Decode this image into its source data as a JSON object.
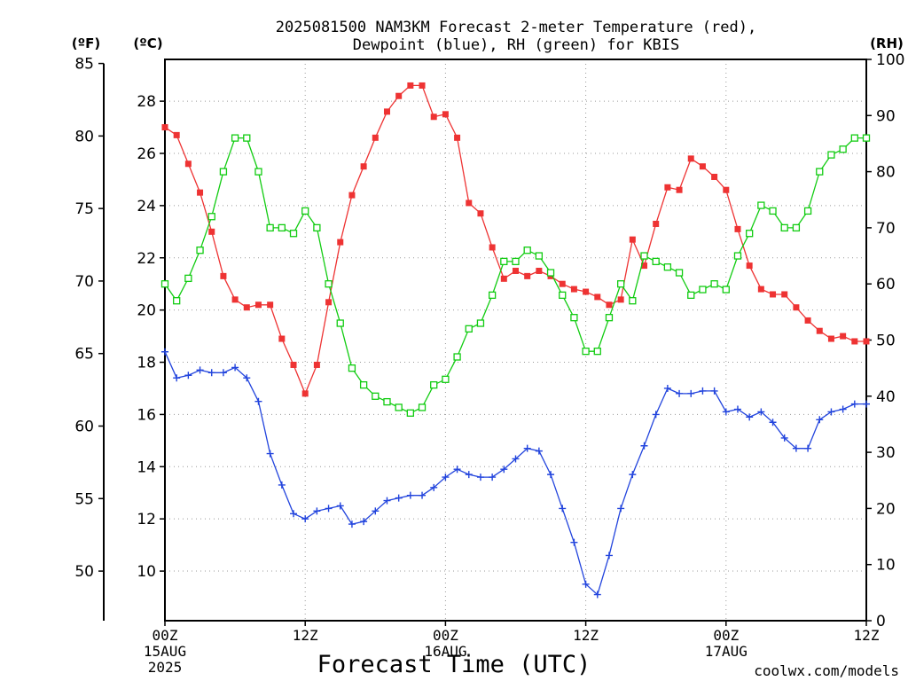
{
  "chart_data": {
    "type": "line",
    "title_line1": "2025081500 NAM3KM Forecast 2-meter Temperature (red),",
    "title_line2": "Dewpoint (blue), RH (green) for KBIS",
    "xlabel": "Forecast Time (UTC)",
    "credit": "coolwx.com/models",
    "unit_labels": {
      "fahrenheit": "(ºF)",
      "celsius": "(ºC)",
      "rh": "(RH)"
    },
    "x_range_hours": [
      0,
      60
    ],
    "x_ticks": [
      {
        "hour": 0,
        "label": "00Z",
        "sub1": "15AUG",
        "sub2": "2025"
      },
      {
        "hour": 12,
        "label": "12Z",
        "sub1": "",
        "sub2": ""
      },
      {
        "hour": 24,
        "label": "00Z",
        "sub1": "16AUG",
        "sub2": ""
      },
      {
        "hour": 36,
        "label": "12Z",
        "sub1": "",
        "sub2": ""
      },
      {
        "hour": 48,
        "label": "00Z",
        "sub1": "17AUG",
        "sub2": ""
      },
      {
        "hour": 60,
        "label": "12Z",
        "sub1": "",
        "sub2": ""
      }
    ],
    "y_celsius": {
      "range": [
        8.1,
        29.6
      ],
      "ticks": [
        10,
        12,
        14,
        16,
        18,
        20,
        22,
        24,
        26,
        28
      ]
    },
    "y_fahrenheit": {
      "ticks": [
        50,
        55,
        60,
        65,
        70,
        75,
        80,
        85
      ]
    },
    "y_rh": {
      "range": [
        0,
        100
      ],
      "ticks": [
        0,
        10,
        20,
        30,
        40,
        50,
        60,
        70,
        80,
        90,
        100
      ]
    },
    "grid": true,
    "colors": {
      "temperature": "#ee3333",
      "dewpoint": "#2244dd",
      "rh": "#11cc11",
      "credit": "#dd2222"
    },
    "series": [
      {
        "name": "Temperature (red)",
        "unit": "C",
        "x": [
          0,
          1,
          2,
          3,
          4,
          5,
          6,
          7,
          8,
          9,
          10,
          11,
          12,
          13,
          14,
          15,
          16,
          17,
          18,
          19,
          20,
          21,
          22,
          23,
          24,
          25,
          26,
          27,
          28,
          29,
          30,
          31,
          32,
          33,
          34,
          35,
          36,
          37,
          38,
          39,
          40,
          41,
          42,
          43,
          44,
          45,
          46,
          47,
          48,
          49,
          50,
          51,
          52,
          53,
          54,
          55,
          56,
          57,
          58,
          59,
          60
        ],
        "values": [
          27.0,
          26.7,
          25.6,
          24.5,
          23.0,
          21.3,
          20.4,
          20.1,
          20.2,
          20.2,
          18.9,
          17.9,
          16.8,
          17.9,
          20.3,
          22.6,
          24.4,
          25.5,
          26.6,
          27.6,
          28.2,
          28.6,
          28.6,
          27.4,
          27.5,
          26.6,
          24.1,
          23.7,
          22.4,
          21.2,
          21.5,
          21.3,
          21.5,
          21.3,
          21.0,
          20.8,
          20.7,
          20.5,
          20.2,
          20.4,
          22.7,
          21.7,
          23.3,
          24.7,
          24.6,
          25.8,
          25.5,
          25.1,
          24.6,
          23.1,
          21.7,
          20.8,
          20.6,
          20.6,
          20.1,
          19.6,
          19.2,
          18.9,
          19.0,
          18.8,
          18.8
        ]
      },
      {
        "name": "Dewpoint (blue)",
        "unit": "C",
        "x": [
          0,
          1,
          2,
          3,
          4,
          5,
          6,
          7,
          8,
          9,
          10,
          11,
          12,
          13,
          14,
          15,
          16,
          17,
          18,
          19,
          20,
          21,
          22,
          23,
          24,
          25,
          26,
          27,
          28,
          29,
          30,
          31,
          32,
          33,
          34,
          35,
          36,
          37,
          38,
          39,
          40,
          41,
          42,
          43,
          44,
          45,
          46,
          47,
          48,
          49,
          50,
          51,
          52,
          53,
          54,
          55,
          56,
          57,
          58,
          59,
          60
        ],
        "values": [
          18.4,
          17.4,
          17.5,
          17.7,
          17.6,
          17.6,
          17.8,
          17.4,
          16.5,
          14.5,
          13.3,
          12.2,
          12.0,
          12.3,
          12.4,
          12.5,
          11.8,
          11.9,
          12.3,
          12.7,
          12.8,
          12.9,
          12.9,
          13.2,
          13.6,
          13.9,
          13.7,
          13.6,
          13.6,
          13.9,
          14.3,
          14.7,
          14.6,
          13.7,
          12.4,
          11.1,
          9.5,
          9.1,
          10.6,
          12.4,
          13.7,
          14.8,
          16.0,
          17.0,
          16.8,
          16.8,
          16.9,
          16.9,
          16.1,
          16.2,
          15.9,
          16.1,
          15.7,
          15.1,
          14.7,
          14.7,
          15.8,
          16.1,
          16.2,
          16.4,
          16.4
        ]
      },
      {
        "name": "RH (green)",
        "unit": "%",
        "x": [
          0,
          1,
          2,
          3,
          4,
          5,
          6,
          7,
          8,
          9,
          10,
          11,
          12,
          13,
          14,
          15,
          16,
          17,
          18,
          19,
          20,
          21,
          22,
          23,
          24,
          25,
          26,
          27,
          28,
          29,
          30,
          31,
          32,
          33,
          34,
          35,
          36,
          37,
          38,
          39,
          40,
          41,
          42,
          43,
          44,
          45,
          46,
          47,
          48,
          49,
          50,
          51,
          52,
          53,
          54,
          55,
          56,
          57,
          58,
          59,
          60
        ],
        "values": [
          60,
          57,
          61,
          66,
          72,
          80,
          86,
          86,
          80,
          70,
          70,
          69,
          73,
          70,
          60,
          53,
          45,
          42,
          40,
          39,
          38,
          37,
          38,
          42,
          43,
          47,
          52,
          53,
          58,
          64,
          64,
          66,
          65,
          62,
          58,
          54,
          48,
          48,
          54,
          60,
          57,
          65,
          64,
          63,
          62,
          58,
          59,
          60,
          59,
          65,
          69,
          74,
          73,
          70,
          70,
          73,
          80,
          83,
          84,
          86,
          86
        ]
      }
    ]
  }
}
